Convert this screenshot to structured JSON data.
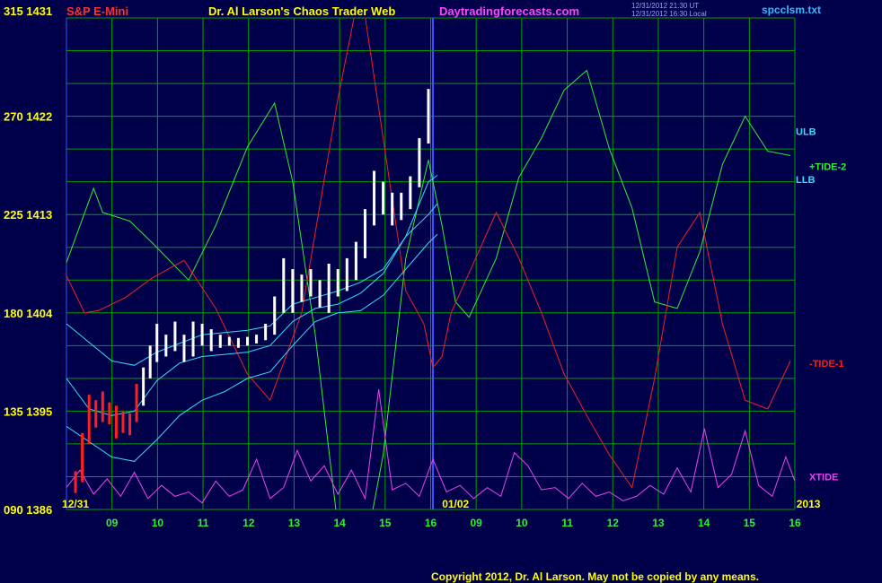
{
  "header": {
    "scale_top": "315 1431",
    "symbol": "S&P E-Mini",
    "title": "Dr. Al Larson's Chaos Trader Web",
    "site": "Daytradingforecasts.com",
    "time1": "12/31/2012 21:30 UT",
    "time2": "12/31/2012 16:30 Local",
    "file": "spcclsm.txt"
  },
  "copyright": "Copyright 2012, Dr. Al Larson. May not be copied by any means.",
  "colors": {
    "background": "#00004a",
    "grid": "#00a000",
    "price_up": "#ffffff",
    "price_early": "#ff2020",
    "bands": "#33ddff",
    "tide2": "#33ee33",
    "tide1": "#ee2222",
    "xtide": "#ee44ee",
    "axis_text": "#ffff00",
    "day_text": "#33ee33",
    "divider": "#3355ff"
  },
  "chart_data": {
    "type": "line",
    "instrument": "S&P E-Mini",
    "y_axis_left": {
      "ticks": [
        {
          "osc": 90,
          "price": 1386,
          "label": "090 1386"
        },
        {
          "osc": 135,
          "price": 1395,
          "label": "135 1395"
        },
        {
          "osc": 180,
          "price": 1404,
          "label": "180 1404"
        },
        {
          "osc": 225,
          "price": 1413,
          "label": "225 1413"
        },
        {
          "osc": 270,
          "price": 1422,
          "label": "270 1422"
        },
        {
          "osc": 315,
          "price": 1431,
          "label": "315 1431"
        }
      ],
      "osc_range": [
        90,
        315
      ],
      "price_range": [
        1386,
        1431
      ]
    },
    "x_axis": {
      "date_labels": [
        {
          "label": "12/31",
          "hour": 8.2
        },
        {
          "label": "01/02",
          "hour": 16.6
        },
        {
          "label": "2013",
          "hour": 24.4
        }
      ],
      "hour_labels": [
        "09",
        "10",
        "11",
        "12",
        "13",
        "14",
        "15",
        "16",
        "09",
        "10",
        "11",
        "12",
        "13",
        "14",
        "15",
        "16"
      ],
      "range_hours": [
        8,
        24.1
      ],
      "divider_hour": 16.1
    },
    "series_labels": [
      {
        "name": "ULB",
        "color": "#33ddff",
        "osc": 263
      },
      {
        "name": "+TIDE-2",
        "color": "#33ee33",
        "osc": 247
      },
      {
        "name": "LLB",
        "color": "#33ddff",
        "osc": 241
      },
      {
        "name": "-TIDE-1",
        "color": "#ee2222",
        "osc": 157
      },
      {
        "name": "XTIDE",
        "color": "#ee44ee",
        "osc": 105
      }
    ],
    "series": [
      {
        "name": "+TIDE-2",
        "color": "#33ee33",
        "x": [
          8.0,
          8.6,
          8.8,
          9.4,
          9.9,
          10.7,
          11.3,
          12.0,
          12.6,
          13.0,
          13.5,
          14.0,
          14.5,
          15.0,
          15.5,
          16.0,
          16.3,
          16.6,
          16.9,
          17.5,
          18.0,
          18.5,
          19.0,
          19.5,
          20.0,
          20.5,
          21.0,
          21.5,
          22.0,
          22.5,
          23.0,
          23.5,
          24.0
        ],
        "y": [
          203,
          237,
          226,
          222,
          212,
          195,
          220,
          256,
          276,
          240,
          170,
          82,
          60,
          115,
          205,
          250,
          220,
          185,
          178,
          205,
          242,
          260,
          282,
          291,
          255,
          228,
          185,
          182,
          208,
          248,
          270,
          254,
          252
        ]
      },
      {
        "name": "-TIDE-1",
        "color": "#ee2222",
        "x": [
          8.0,
          8.4,
          8.7,
          9.3,
          9.9,
          10.6,
          11.3,
          12.0,
          12.5,
          13.2,
          14.0,
          14.5,
          15.0,
          15.5,
          15.9,
          16.1,
          16.3,
          16.5,
          17.0,
          17.5,
          18.0,
          18.5,
          19.0,
          19.5,
          20.0,
          20.5,
          21.0,
          21.5,
          22.0,
          22.5,
          23.0,
          23.5,
          24.0
        ],
        "y": [
          197,
          180,
          181,
          187,
          196,
          204,
          182,
          152,
          140,
          180,
          278,
          330,
          260,
          190,
          175,
          155,
          160,
          180,
          203,
          226,
          205,
          180,
          152,
          133,
          115,
          100,
          150,
          210,
          226,
          175,
          140,
          136,
          158
        ]
      },
      {
        "name": "ULB",
        "color": "#33ddff",
        "x": [
          8.0,
          9.0,
          9.5,
          10.0,
          10.5,
          11.0,
          11.5,
          12.0,
          12.5,
          13.0,
          13.5,
          14.0,
          14.5,
          15.0,
          15.5,
          16.0,
          16.2
        ],
        "y": [
          175,
          158,
          156,
          162,
          166,
          170,
          171,
          172,
          174,
          184,
          187,
          190,
          194,
          200,
          215,
          240,
          243
        ]
      },
      {
        "name": "LLB",
        "color": "#33ddff",
        "x": [
          8.0,
          9.0,
          9.5,
          10.0,
          10.5,
          11.0,
          11.5,
          12.0,
          12.5,
          13.0,
          13.5,
          14.0,
          14.5,
          15.0,
          15.5,
          16.0,
          16.2
        ],
        "y": [
          128,
          114,
          112,
          122,
          133,
          140,
          144,
          150,
          153,
          165,
          176,
          180,
          181,
          188,
          200,
          212,
          216
        ]
      },
      {
        "name": "mid",
        "color": "#33ddff",
        "x": [
          8.0,
          8.5,
          9.0,
          9.5,
          10.0,
          10.5,
          11.0,
          11.5,
          12.0,
          12.5,
          13.0,
          13.5,
          14.0,
          14.5,
          15.0,
          15.5,
          16.0,
          16.2
        ],
        "y": [
          150,
          136,
          133,
          135,
          149,
          157,
          160,
          161,
          162,
          165,
          176,
          182,
          184,
          189,
          198,
          215,
          225,
          230
        ]
      },
      {
        "name": "XTIDE",
        "color": "#ee44ee",
        "x": [
          8.0,
          8.3,
          8.6,
          8.9,
          9.2,
          9.5,
          9.8,
          10.1,
          10.4,
          10.7,
          11.0,
          11.3,
          11.6,
          11.9,
          12.2,
          12.5,
          12.8,
          13.1,
          13.4,
          13.7,
          14.0,
          14.3,
          14.6,
          14.9,
          15.2,
          15.5,
          15.8,
          16.1,
          16.4,
          16.7,
          17.0,
          17.3,
          17.6,
          17.9,
          18.2,
          18.5,
          18.8,
          19.1,
          19.4,
          19.7,
          20.0,
          20.3,
          20.6,
          20.9,
          21.2,
          21.5,
          21.8,
          22.1,
          22.4,
          22.7,
          23.0,
          23.3,
          23.6,
          23.9,
          24.1
        ],
        "y": [
          100,
          108,
          97,
          104,
          96,
          107,
          95,
          101,
          96,
          98,
          93,
          103,
          96,
          99,
          113,
          95,
          100,
          117,
          103,
          110,
          97,
          108,
          95,
          145,
          99,
          102,
          96,
          113,
          98,
          101,
          95,
          100,
          96,
          116,
          110,
          99,
          100,
          95,
          102,
          96,
          98,
          94,
          96,
          101,
          97,
          109,
          98,
          127,
          100,
          106,
          126,
          101,
          96,
          114,
          103
        ]
      }
    ],
    "price_bars": [
      {
        "hour": 8.2,
        "low": 1387.5,
        "high": 1389.5,
        "color": "#ff2020"
      },
      {
        "hour": 8.35,
        "low": 1388.5,
        "high": 1393.0,
        "color": "#ff2020"
      },
      {
        "hour": 8.5,
        "low": 1392.0,
        "high": 1396.5,
        "color": "#ff2020"
      },
      {
        "hour": 8.65,
        "low": 1393.5,
        "high": 1396.0,
        "color": "#ff2020"
      },
      {
        "hour": 8.8,
        "low": 1394.0,
        "high": 1396.8,
        "color": "#ff2020"
      },
      {
        "hour": 8.95,
        "low": 1393.8,
        "high": 1395.8,
        "color": "#ff2020"
      },
      {
        "hour": 9.1,
        "low": 1392.5,
        "high": 1395.5,
        "color": "#ff2020"
      },
      {
        "hour": 9.25,
        "low": 1393.0,
        "high": 1395.0,
        "color": "#ff2020"
      },
      {
        "hour": 9.4,
        "low": 1392.8,
        "high": 1394.8,
        "color": "#ff2020"
      },
      {
        "hour": 9.55,
        "low": 1394.0,
        "high": 1397.5,
        "color": "#ff2020"
      },
      {
        "hour": 9.7,
        "low": 1395.5,
        "high": 1399.0,
        "color": "#ffffff"
      },
      {
        "hour": 9.85,
        "low": 1398.0,
        "high": 1401.0,
        "color": "#ffffff"
      },
      {
        "hour": 10.0,
        "low": 1399.5,
        "high": 1403.0,
        "color": "#ffffff"
      },
      {
        "hour": 10.2,
        "low": 1400.0,
        "high": 1402.0,
        "color": "#ffffff"
      },
      {
        "hour": 10.4,
        "low": 1400.5,
        "high": 1403.2,
        "color": "#ffffff"
      },
      {
        "hour": 10.6,
        "low": 1399.5,
        "high": 1402.0,
        "color": "#ffffff"
      },
      {
        "hour": 10.8,
        "low": 1400.0,
        "high": 1403.2,
        "color": "#ffffff"
      },
      {
        "hour": 11.0,
        "low": 1401.0,
        "high": 1403.0,
        "color": "#ffffff"
      },
      {
        "hour": 11.2,
        "low": 1400.5,
        "high": 1402.5,
        "color": "#ffffff"
      },
      {
        "hour": 11.4,
        "low": 1400.8,
        "high": 1402.0,
        "color": "#ffffff"
      },
      {
        "hour": 11.6,
        "low": 1401.0,
        "high": 1401.8,
        "color": "#ffffff"
      },
      {
        "hour": 11.8,
        "low": 1400.8,
        "high": 1401.7,
        "color": "#ffffff"
      },
      {
        "hour": 12.0,
        "low": 1401.0,
        "high": 1401.8,
        "color": "#ffffff"
      },
      {
        "hour": 12.2,
        "low": 1401.2,
        "high": 1402.0,
        "color": "#ffffff"
      },
      {
        "hour": 12.4,
        "low": 1401.5,
        "high": 1403.0,
        "color": "#ffffff"
      },
      {
        "hour": 12.6,
        "low": 1402.0,
        "high": 1405.5,
        "color": "#ffffff"
      },
      {
        "hour": 12.8,
        "low": 1404.0,
        "high": 1409.0,
        "color": "#ffffff"
      },
      {
        "hour": 13.0,
        "low": 1404.0,
        "high": 1408.0,
        "color": "#ffffff"
      },
      {
        "hour": 13.2,
        "low": 1405.0,
        "high": 1407.5,
        "color": "#ffffff"
      },
      {
        "hour": 13.4,
        "low": 1405.5,
        "high": 1408.0,
        "color": "#ffffff"
      },
      {
        "hour": 13.6,
        "low": 1404.5,
        "high": 1407.0,
        "color": "#ffffff"
      },
      {
        "hour": 13.8,
        "low": 1404.0,
        "high": 1408.5,
        "color": "#ffffff"
      },
      {
        "hour": 14.0,
        "low": 1405.5,
        "high": 1408.0,
        "color": "#ffffff"
      },
      {
        "hour": 14.2,
        "low": 1406.0,
        "high": 1409.0,
        "color": "#ffffff"
      },
      {
        "hour": 14.4,
        "low": 1407.0,
        "high": 1410.5,
        "color": "#ffffff"
      },
      {
        "hour": 14.6,
        "low": 1409.0,
        "high": 1413.5,
        "color": "#ffffff"
      },
      {
        "hour": 14.8,
        "low": 1412.0,
        "high": 1417.0,
        "color": "#ffffff"
      },
      {
        "hour": 15.0,
        "low": 1413.0,
        "high": 1416.0,
        "color": "#ffffff"
      },
      {
        "hour": 15.2,
        "low": 1412.0,
        "high": 1415.0,
        "color": "#ffffff"
      },
      {
        "hour": 15.4,
        "low": 1412.5,
        "high": 1415.0,
        "color": "#ffffff"
      },
      {
        "hour": 15.6,
        "low": 1413.5,
        "high": 1416.5,
        "color": "#ffffff"
      },
      {
        "hour": 15.8,
        "low": 1415.5,
        "high": 1420.0,
        "color": "#ffffff"
      },
      {
        "hour": 16.0,
        "low": 1419.5,
        "high": 1424.5,
        "color": "#ffffff"
      }
    ]
  }
}
